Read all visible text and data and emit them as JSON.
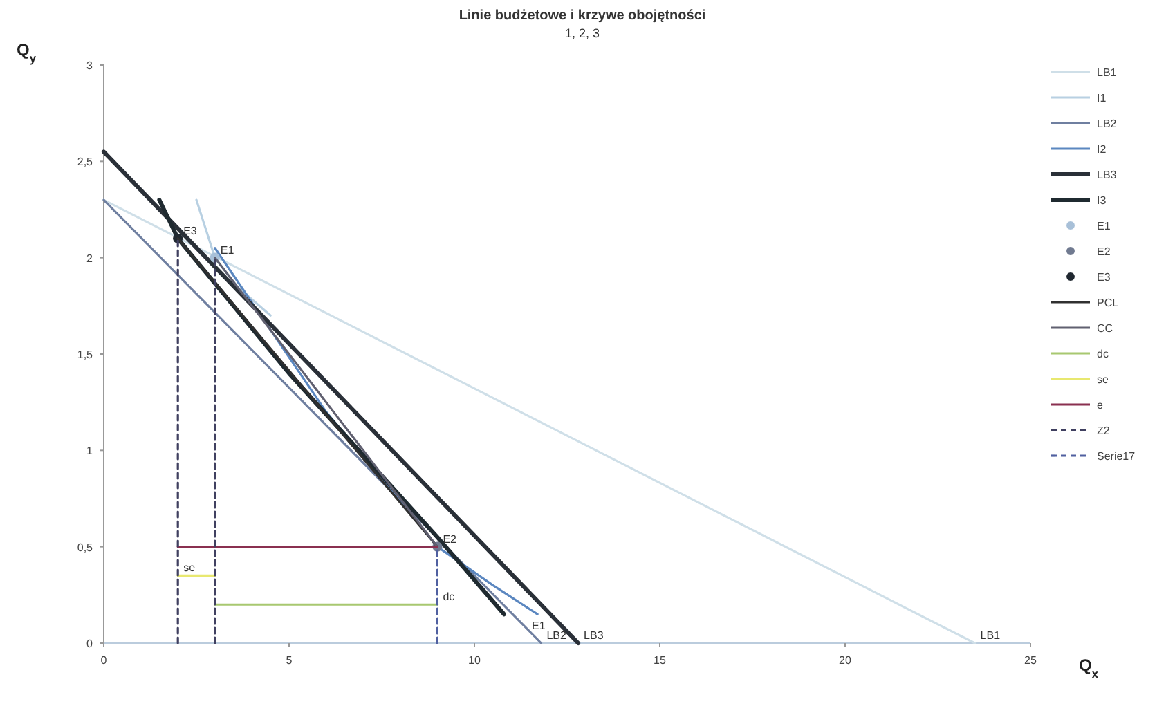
{
  "chart_data": {
    "type": "line",
    "title": "Linie budżetowe i krzywe obojętności",
    "subtitle": "1, 2, 3",
    "xlabel": "Q$_{x}$",
    "ylabel": "Q$_{y}$",
    "xlim": [
      0,
      25
    ],
    "xticks": [
      0,
      5,
      10,
      15,
      20,
      25
    ],
    "ylim": [
      0,
      3
    ],
    "yticks": [
      0,
      {
        "value": 0.5,
        "label": "0,5"
      },
      1,
      {
        "value": 1.5,
        "label": "1,5"
      },
      2,
      {
        "value": 2.5,
        "label": "2,5"
      },
      3
    ],
    "grid": false,
    "legend": "right",
    "marker": "none",
    "line_style": "solid",
    "series": [
      {
        "name": "LB1",
        "color": "#cfdfe8",
        "x": [
          0,
          23.5
        ],
        "values": [
          2.3,
          0
        ]
      },
      {
        "name": "I1",
        "color": "#b8d0e2",
        "x": [
          2.5,
          3,
          3.6,
          4.5
        ],
        "values": [
          2.3,
          2.0,
          1.85,
          1.7
        ]
      },
      {
        "name": "LB2",
        "color": "#6f7fa0",
        "x": [
          0,
          11.8
        ],
        "values": [
          2.3,
          0
        ]
      },
      {
        "name": "I2",
        "color": "#5b87c0",
        "x": [
          3,
          6,
          9,
          10.5,
          11.7
        ],
        "values": [
          2.05,
          1.2,
          0.5,
          0.3,
          0.15
        ]
      },
      {
        "name": "LB3",
        "color": "#2a3038",
        "x": [
          0,
          12.8
        ],
        "values": [
          2.55,
          0
        ]
      },
      {
        "name": "I3",
        "color": "#1f2a30",
        "x": [
          1.5,
          2,
          5,
          9,
          10.8
        ],
        "values": [
          2.3,
          2.1,
          1.4,
          0.55,
          0.15
        ]
      },
      {
        "name": "E1",
        "type": "scatter",
        "color": "#a8c0d8",
        "marker": "circle",
        "x": [
          3
        ],
        "values": [
          2.0
        ]
      },
      {
        "name": "E2",
        "type": "scatter",
        "color": "#707a90",
        "marker": "circle",
        "x": [
          9
        ],
        "values": [
          0.5
        ]
      },
      {
        "name": "E3",
        "type": "scatter",
        "color": "#202830",
        "marker": "circle",
        "x": [
          2
        ],
        "values": [
          2.1
        ]
      },
      {
        "name": "PCL",
        "color": "#303030",
        "x": [
          2,
          9
        ],
        "values": [
          2.1,
          0.5
        ]
      },
      {
        "name": "CC",
        "color": "#606070",
        "x": [
          3,
          9
        ],
        "values": [
          2.0,
          0.5
        ]
      },
      {
        "name": "dc",
        "color": "#a8c870",
        "x": [
          3,
          9
        ],
        "values": [
          0.2,
          0.2
        ]
      },
      {
        "name": "se",
        "color": "#e8e870",
        "x": [
          3,
          2
        ],
        "values": [
          0.35,
          0.35
        ]
      },
      {
        "name": "e",
        "color": "#8a3050",
        "x": [
          9,
          2
        ],
        "values": [
          0.5,
          0.5
        ]
      },
      {
        "name": "Z2",
        "color": "#404060",
        "line_style": "dashed",
        "x": [
          2,
          2,
          null,
          3,
          3
        ],
        "values": [
          0,
          2.1,
          null,
          0,
          2.0
        ]
      },
      {
        "name": "Serie17",
        "color": "#5060a0",
        "line_style": "dashed",
        "x": [
          9,
          9
        ],
        "values": [
          0,
          0.5
        ]
      }
    ],
    "annotations": [
      {
        "text": "E3",
        "x": 2,
        "y": 2.1
      },
      {
        "text": "E1",
        "x": 3,
        "y": 2.0
      },
      {
        "text": "E2",
        "x": 9,
        "y": 0.5
      },
      {
        "text": "E1",
        "x": 11.4,
        "y": 0.05
      },
      {
        "text": "LB2",
        "x": 11.8,
        "y": 0
      },
      {
        "text": "LB3",
        "x": 12.8,
        "y": 0
      },
      {
        "text": "LB1",
        "x": 23.5,
        "y": 0
      },
      {
        "text": "se",
        "x": 2,
        "y": 0.35
      },
      {
        "text": "dc",
        "x": 9,
        "y": 0.2
      }
    ]
  }
}
